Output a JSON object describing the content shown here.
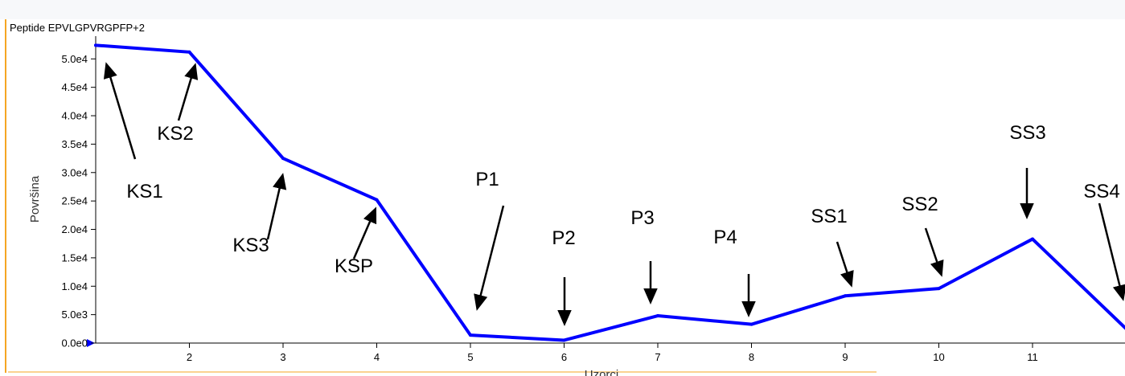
{
  "chart_data": {
    "type": "line",
    "title": "Peptide EPVLGPVRGPFP+2",
    "xlabel": "Uzorci",
    "ylabel": "Površina",
    "x": [
      1,
      2,
      3,
      4,
      5,
      6,
      7,
      8,
      9,
      10,
      11,
      12
    ],
    "x_tick_labels": [
      "2",
      "3",
      "4",
      "5",
      "6",
      "7",
      "8",
      "9",
      "10",
      "11"
    ],
    "y_tick_labels": [
      "0.0e0",
      "5.0e3",
      "1.0e4",
      "1.5e4",
      "2.0e4",
      "2.5e4",
      "3.0e4",
      "3.5e4",
      "4.0e4",
      "4.5e4",
      "5.0e4"
    ],
    "y_ticks": [
      0,
      5000,
      10000,
      15000,
      20000,
      25000,
      30000,
      35000,
      40000,
      45000,
      50000
    ],
    "xlim": [
      1,
      12.1
    ],
    "ylim": [
      0,
      54000
    ],
    "grid": false,
    "series": [
      {
        "values": [
          52400,
          51200,
          32500,
          25200,
          1400,
          500,
          4800,
          3300,
          8300,
          9600,
          18300,
          2500
        ],
        "color": "#0000ff"
      }
    ],
    "annotations": [
      {
        "label": "KS1",
        "point": 1
      },
      {
        "label": "KS2",
        "point": 2
      },
      {
        "label": "KS3",
        "point": 3
      },
      {
        "label": "KSP",
        "point": 4
      },
      {
        "label": "P1",
        "point": 5
      },
      {
        "label": "P2",
        "point": 6
      },
      {
        "label": "P3",
        "point": 7
      },
      {
        "label": "P4",
        "point": 8
      },
      {
        "label": "SS1",
        "point": 9
      },
      {
        "label": "SS2",
        "point": 10
      },
      {
        "label": "SS3",
        "point": 11
      },
      {
        "label": "SS4",
        "point": 12
      }
    ],
    "colors": {
      "line": "#0000ff",
      "axis": "#000000",
      "arrow": "#000000",
      "accent": "#f5a623"
    }
  }
}
